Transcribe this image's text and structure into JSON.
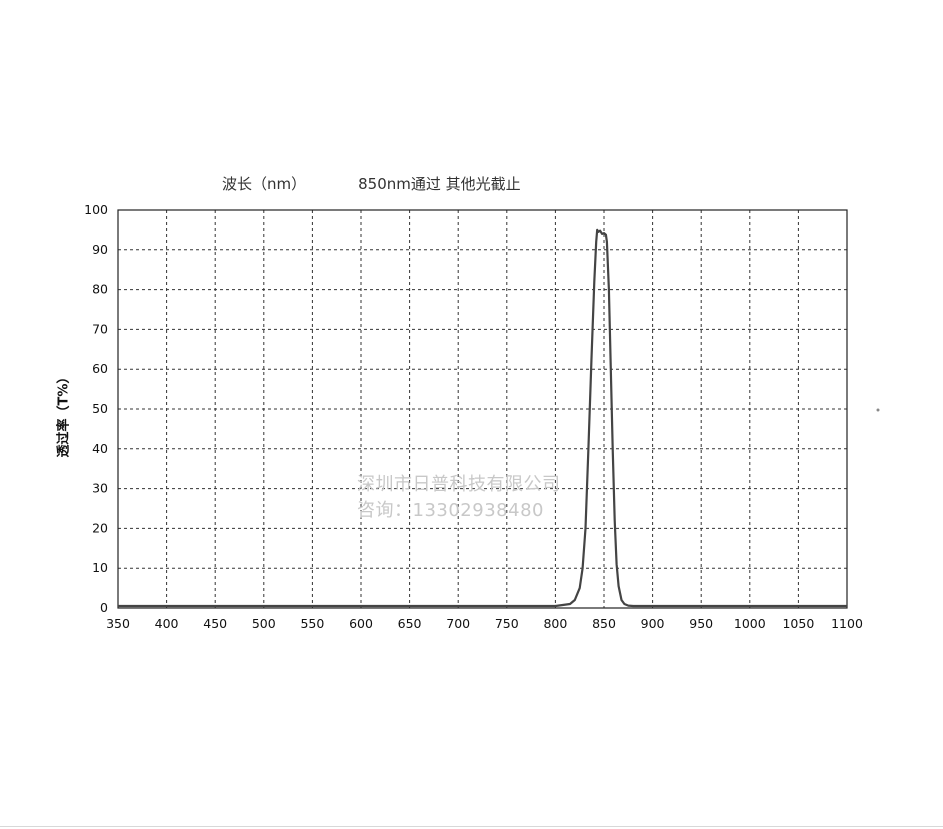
{
  "chart_data": {
    "type": "line",
    "title": "850nm通过 其他光截止",
    "xlabel": "波长（nm）",
    "ylabel": "透过率（T%）",
    "xlim": [
      350,
      1100
    ],
    "ylim": [
      0,
      100
    ],
    "x_ticks": [
      350,
      400,
      450,
      500,
      550,
      600,
      650,
      700,
      750,
      800,
      850,
      900,
      950,
      1000,
      1050,
      1100
    ],
    "y_ticks": [
      0,
      10,
      20,
      30,
      40,
      50,
      60,
      70,
      80,
      90,
      100
    ],
    "grid": true,
    "line_color": "#444444",
    "series": [
      {
        "x": [
          350,
          600,
          800,
          815,
          820,
          825,
          828,
          831,
          834,
          837,
          840,
          842,
          843,
          844,
          846,
          848,
          850,
          852,
          853,
          855,
          857,
          859,
          861,
          863,
          865,
          868,
          871,
          875,
          880,
          890,
          1000,
          1100
        ],
        "y": [
          0.5,
          0.5,
          0.5,
          1,
          2,
          5,
          10,
          20,
          40,
          62,
          82,
          92,
          95,
          94.5,
          94.8,
          94,
          94.2,
          93.8,
          92,
          80,
          60,
          40,
          22,
          11,
          5.5,
          2,
          1,
          0.6,
          0.5,
          0.5,
          0.5,
          0.5
        ]
      }
    ]
  },
  "watermark": {
    "line1": "深圳市日普科技有限公司",
    "line2": "咨询：13302938480"
  }
}
